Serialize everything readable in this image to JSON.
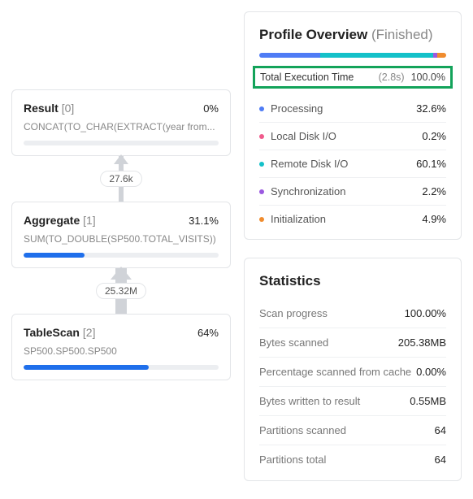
{
  "colors": {
    "processing": "#4f7cf5",
    "localDisk": "#f05a8c",
    "remoteDisk": "#14c1c9",
    "sync": "#9b59e0",
    "init": "#f08c2e",
    "misc": "#cfd3d8",
    "highlightBorder": "#13a35a",
    "barFill": "#1f6feb"
  },
  "stackedSegments": [
    {
      "color": "#4f7cf5",
      "pct": 32.6
    },
    {
      "color": "#f05a8c",
      "pct": 0.2
    },
    {
      "color": "#14c1c9",
      "pct": 60.1
    },
    {
      "color": "#9b59e0",
      "pct": 2.2
    },
    {
      "color": "#f08c2e",
      "pct": 4.9
    }
  ],
  "plan": {
    "nodes": [
      {
        "title": "Result",
        "idx": "[0]",
        "pct": "0%",
        "pct_num": 0,
        "sub": "CONCAT(TO_CHAR(EXTRACT(year from..."
      },
      {
        "title": "Aggregate",
        "idx": "[1]",
        "pct": "31.1%",
        "pct_num": 31.1,
        "sub": "SUM(TO_DOUBLE(SP500.TOTAL_VISITS))"
      },
      {
        "title": "TableScan",
        "idx": "[2]",
        "pct": "64%",
        "pct_num": 64,
        "sub": "SP500.SP500.SP500"
      }
    ],
    "edges": [
      {
        "label": "27.6k",
        "thick": false
      },
      {
        "label": "25.32M",
        "thick": true
      }
    ]
  },
  "profile": {
    "title": "Profile Overview",
    "status": "(Finished)",
    "total_label": "Total Execution Time",
    "total_time": "(2.8s)",
    "total_pct": "100.0%",
    "rows": [
      {
        "label": "Processing",
        "value": "32.6%",
        "color": "#4f7cf5"
      },
      {
        "label": "Local Disk I/O",
        "value": "0.2%",
        "color": "#f05a8c"
      },
      {
        "label": "Remote Disk I/O",
        "value": "60.1%",
        "color": "#14c1c9"
      },
      {
        "label": "Synchronization",
        "value": "2.2%",
        "color": "#9b59e0"
      },
      {
        "label": "Initialization",
        "value": "4.9%",
        "color": "#f08c2e"
      }
    ]
  },
  "stats": {
    "title": "Statistics",
    "rows": [
      {
        "label": "Scan progress",
        "value": "100.00%"
      },
      {
        "label": "Bytes scanned",
        "value": "205.38MB"
      },
      {
        "label": "Percentage scanned from cache",
        "value": "0.00%"
      },
      {
        "label": "Bytes written to result",
        "value": "0.55MB"
      },
      {
        "label": "Partitions scanned",
        "value": "64"
      },
      {
        "label": "Partitions total",
        "value": "64"
      }
    ]
  }
}
